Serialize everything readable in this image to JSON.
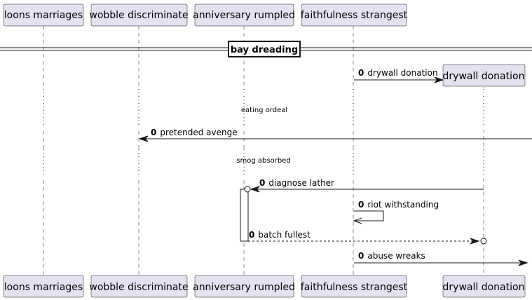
{
  "participants": [
    {
      "id": "p1",
      "label": "loons marriages"
    },
    {
      "id": "p2",
      "label": "wobble discriminate"
    },
    {
      "id": "p3",
      "label": "anniversary rumpled"
    },
    {
      "id": "p4",
      "label": "faithfulness strangest"
    },
    {
      "id": "p5",
      "label": "drywall donation"
    }
  ],
  "divider": {
    "label": "bay dreading"
  },
  "delays": [
    {
      "label": "eating ordeal"
    },
    {
      "label": "smog absorbed"
    }
  ],
  "messages": [
    {
      "num": "0",
      "label": "drywall donation"
    },
    {
      "num": "0",
      "label": "pretended avenge"
    },
    {
      "num": "0",
      "label": "diagnose lather"
    },
    {
      "num": "0",
      "label": "riot withstanding"
    },
    {
      "num": "0",
      "label": "batch fullest"
    },
    {
      "num": "0",
      "label": "abuse wreaks"
    }
  ]
}
